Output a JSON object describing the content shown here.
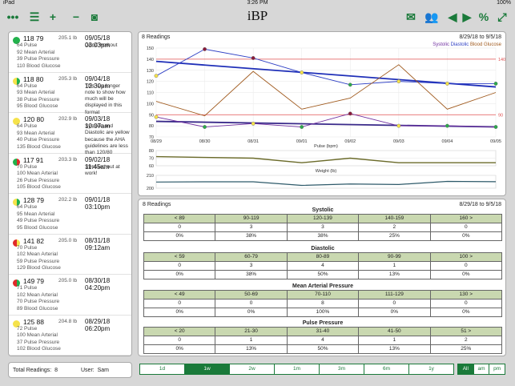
{
  "status": {
    "device": "iPad",
    "time": "3:26 PM",
    "battery": "100%"
  },
  "app": {
    "title": "iBP"
  },
  "toolbar_left": [
    {
      "name": "more-icon",
      "glyph": "•••"
    },
    {
      "name": "list-icon",
      "glyph": "☰"
    },
    {
      "name": "add-icon",
      "glyph": "+"
    },
    {
      "name": "remove-icon",
      "glyph": "−"
    },
    {
      "name": "camera-icon",
      "glyph": "◙"
    }
  ],
  "toolbar_right": [
    {
      "name": "mail-icon",
      "glyph": "✉"
    },
    {
      "name": "users-icon",
      "glyph": "👥"
    },
    {
      "name": "prev-icon",
      "glyph": "◀"
    },
    {
      "name": "next-icon",
      "glyph": "▶"
    },
    {
      "name": "percent-icon",
      "glyph": "%"
    },
    {
      "name": "expand-icon",
      "glyph": "⤢"
    }
  ],
  "colors": {
    "accent": "#1a7a3a",
    "green": "#22b14c",
    "yellow": "#f5e24a",
    "red": "#e02a2a",
    "systolic": "#7030a0",
    "diastolic": "#2e3fc4",
    "glucose": "#a05a1e",
    "pulse": "#6b6b2a",
    "weight": "#2e5a6a"
  },
  "entries": [
    {
      "bp": "118 79",
      "weight": "205.1 lb",
      "date": "09/05/18 03:03pm",
      "dot": [
        "#22b14c",
        "#22b14c"
      ],
      "stats": [
        "64 Pulse",
        "92 Mean Arterial",
        "39 Pulse Pressure",
        "110 Blood Glucose"
      ],
      "note": "Good workout"
    },
    {
      "bp": "118 80",
      "weight": "205.3 lb",
      "date": "09/04/18 12:30pm",
      "dot": [
        "#f5e24a",
        "#22b14c"
      ],
      "stats": [
        "64 Pulse",
        "93 Mean Arterial",
        "38 Pulse Pressure",
        "95 Blood Glucose"
      ],
      "note": "This is a longer note to show how much will be displayed in this format"
    },
    {
      "bp": "120 80",
      "weight": "202.9 lb",
      "date": "09/03/18 10:07am",
      "dot": [
        "#f5e24a",
        "#f5e24a"
      ],
      "stats": [
        "64 Pulse",
        "93 Mean Arterial",
        "40 Pulse Pressure",
        "135 Blood Glucose"
      ],
      "note": "Systolic and Diastolic are yellow because the AHA guidelines are less than 120/80"
    },
    {
      "bp": "117 91",
      "weight": "203.3 lb",
      "date": "09/02/18 11:45am",
      "dot": [
        "#22b14c",
        "#e02a2a"
      ],
      "stats": [
        "70 Pulse",
        "100 Mean Arterial",
        "26 Pulse Pressure",
        "105 Blood Glucose"
      ],
      "note": "Stressed out at work!"
    },
    {
      "bp": "128 79",
      "weight": "202.2 lb",
      "date": "09/01/18 03:10pm",
      "dot": [
        "#f5e24a",
        "#22b14c"
      ],
      "stats": [
        "64 Pulse",
        "95 Mean Arterial",
        "49 Pulse Pressure",
        "95 Blood Glucose"
      ],
      "note": ""
    },
    {
      "bp": "141 82",
      "weight": "205.0 lb",
      "date": "08/31/18 09:12am",
      "dot": [
        "#e02a2a",
        "#f5e24a"
      ],
      "stats": [
        "70 Pulse",
        "102 Mean Arterial",
        "59 Pulse Pressure",
        "129 Blood Glucose"
      ],
      "note": ""
    },
    {
      "bp": "149 79",
      "weight": "205.0 lb",
      "date": "08/30/18 04:20pm",
      "dot": [
        "#e02a2a",
        "#22b14c"
      ],
      "stats": [
        "71 Pulse",
        "102 Mean Arterial",
        "70 Pulse Pressure",
        "89 Blood Glucose"
      ],
      "note": ""
    },
    {
      "bp": "125 88",
      "weight": "204.8 lb",
      "date": "08/29/18 06:20pm",
      "dot": [
        "#f5e24a",
        "#f5e24a"
      ],
      "stats": [
        "72 Pulse",
        "100 Mean Arterial",
        "37 Pulse Pressure",
        "102 Blood Glucose"
      ],
      "note": ""
    }
  ],
  "chart_panel": {
    "count_label": "8 Readings",
    "range_label": "8/29/18 to 9/5/18",
    "legend_systolic": "Systolic",
    "legend_diastolic": "Diastolic",
    "legend_glucose": "Blood Glucose"
  },
  "chart_data": [
    {
      "type": "line",
      "x": [
        "08/29",
        "08/30",
        "08/31",
        "09/01",
        "09/02",
        "09/03",
        "09/04",
        "09/05"
      ],
      "ylim": [
        70,
        150
      ],
      "yticks": [
        70,
        80,
        90,
        100,
        110,
        120,
        130,
        140,
        150
      ],
      "reference_lines": [
        140,
        90
      ],
      "series": [
        {
          "name": "Systolic",
          "values": [
            125,
            149,
            141,
            128,
            117,
            120,
            118,
            118
          ]
        },
        {
          "name": "Diastolic",
          "values": [
            88,
            79,
            82,
            79,
            91,
            80,
            80,
            79
          ]
        },
        {
          "name": "Blood Glucose",
          "values": [
            102,
            89,
            129,
            95,
            105,
            135,
            95,
            110
          ]
        }
      ],
      "trend_systolic": [
        138,
        115
      ],
      "trend_diastolic": [
        84,
        79
      ]
    },
    {
      "type": "line",
      "xlabel": "Pulse (bpm)",
      "ylim": [
        60,
        80
      ],
      "yticks": [
        60,
        70,
        80
      ],
      "series": [
        {
          "name": "Pulse",
          "values": [
            72,
            71,
            70,
            64,
            70,
            64,
            64,
            64
          ]
        }
      ]
    },
    {
      "type": "line",
      "xlabel": "Weight (lb)",
      "ylim": [
        200,
        210
      ],
      "yticks": [
        200,
        210
      ],
      "series": [
        {
          "name": "Weight",
          "values": [
            204.8,
            205.0,
            205.0,
            202.2,
            203.3,
            202.9,
            205.3,
            205.1
          ]
        }
      ]
    }
  ],
  "stats_panel": {
    "count_label": "8 Readings",
    "range_label": "8/29/18 to 9/5/18",
    "sections": [
      {
        "title": "Systolic",
        "headers": [
          "< 89",
          "90-119",
          "120-139",
          "140-159",
          "160 >"
        ],
        "counts": [
          "0",
          "3",
          "3",
          "2",
          "0"
        ],
        "pcts": [
          "0%",
          "38%",
          "38%",
          "25%",
          "0%"
        ]
      },
      {
        "title": "Diastolic",
        "headers": [
          "< 59",
          "60-79",
          "80-89",
          "90-99",
          "100 >"
        ],
        "counts": [
          "0",
          "3",
          "4",
          "1",
          "0"
        ],
        "pcts": [
          "0%",
          "38%",
          "50%",
          "13%",
          "0%"
        ]
      },
      {
        "title": "Mean Arterial Pressure",
        "headers": [
          "< 49",
          "50-69",
          "70-110",
          "111-129",
          "130 >"
        ],
        "counts": [
          "0",
          "0",
          "8",
          "0",
          "0"
        ],
        "pcts": [
          "0%",
          "0%",
          "100%",
          "0%",
          "0%"
        ]
      },
      {
        "title": "Pulse Pressure",
        "headers": [
          "< 20",
          "21-30",
          "31-40",
          "41-50",
          "51 >"
        ],
        "counts": [
          "0",
          "1",
          "4",
          "1",
          "2"
        ],
        "pcts": [
          "0%",
          "13%",
          "50%",
          "13%",
          "25%"
        ]
      }
    ]
  },
  "footer": {
    "total_label": "Total Readings:",
    "total_value": "8",
    "user_label": "User:",
    "user_value": "Sam",
    "ranges": [
      "1d",
      "1w",
      "2w",
      "1m",
      "3m",
      "6m",
      "1y"
    ],
    "active_range": "1w",
    "times": [
      "All",
      "am",
      "pm"
    ],
    "active_time": "All"
  }
}
